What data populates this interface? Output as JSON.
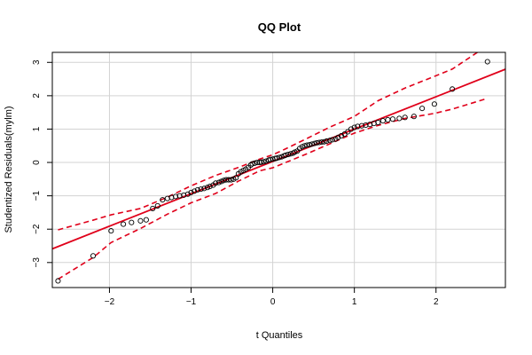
{
  "chart_data": {
    "type": "scatter",
    "title": "QQ Plot",
    "xlabel": "t Quantiles",
    "ylabel": "Studentized Residuals(mylm)",
    "xlim": [
      -2.7,
      2.85
    ],
    "ylim": [
      -3.75,
      3.3
    ],
    "x_ticks": [
      -2,
      -1,
      0,
      1,
      2
    ],
    "y_ticks": [
      -3,
      -2,
      -1,
      0,
      1,
      2,
      3
    ],
    "x_tick_labels": [
      "−2",
      "−1",
      "0",
      "1",
      "2"
    ],
    "y_tick_labels": [
      "−3",
      "−2",
      "−1",
      "0",
      "1",
      "2",
      "3"
    ],
    "grid": true,
    "points": {
      "x": [
        -2.63,
        -2.2,
        -1.98,
        -1.83,
        -1.73,
        -1.62,
        -1.55,
        -1.47,
        -1.41,
        -1.35,
        -1.29,
        -1.24,
        -1.19,
        -1.14,
        -1.09,
        -1.04,
        -1.0,
        -0.96,
        -0.92,
        -0.88,
        -0.84,
        -0.8,
        -0.77,
        -0.73,
        -0.7,
        -0.66,
        -0.63,
        -0.6,
        -0.57,
        -0.54,
        -0.51,
        -0.48,
        -0.45,
        -0.42,
        -0.39,
        -0.36,
        -0.33,
        -0.3,
        -0.27,
        -0.25,
        -0.22,
        -0.19,
        -0.16,
        -0.14,
        -0.11,
        -0.08,
        -0.05,
        -0.03,
        0.0,
        0.03,
        0.05,
        0.08,
        0.11,
        0.14,
        0.16,
        0.19,
        0.22,
        0.25,
        0.27,
        0.3,
        0.33,
        0.36,
        0.39,
        0.42,
        0.45,
        0.48,
        0.51,
        0.54,
        0.57,
        0.6,
        0.63,
        0.66,
        0.7,
        0.73,
        0.77,
        0.8,
        0.84,
        0.88,
        0.92,
        0.96,
        1.0,
        1.04,
        1.09,
        1.14,
        1.19,
        1.24,
        1.29,
        1.35,
        1.41,
        1.47,
        1.55,
        1.62,
        1.73,
        1.83,
        1.98,
        2.2,
        2.63
      ],
      "y": [
        -3.55,
        -2.8,
        -2.05,
        -1.85,
        -1.8,
        -1.75,
        -1.72,
        -1.38,
        -1.3,
        -1.12,
        -1.08,
        -1.05,
        -1.02,
        -1.0,
        -0.98,
        -0.95,
        -0.9,
        -0.86,
        -0.82,
        -0.8,
        -0.78,
        -0.75,
        -0.72,
        -0.68,
        -0.62,
        -0.6,
        -0.57,
        -0.54,
        -0.52,
        -0.52,
        -0.52,
        -0.5,
        -0.46,
        -0.34,
        -0.28,
        -0.24,
        -0.2,
        -0.15,
        -0.08,
        -0.04,
        -0.02,
        0.0,
        0.0,
        0.01,
        0.02,
        0.04,
        0.07,
        0.09,
        0.1,
        0.12,
        0.13,
        0.15,
        0.17,
        0.2,
        0.22,
        0.24,
        0.26,
        0.28,
        0.31,
        0.34,
        0.42,
        0.47,
        0.5,
        0.52,
        0.53,
        0.55,
        0.57,
        0.59,
        0.6,
        0.61,
        0.62,
        0.64,
        0.66,
        0.68,
        0.7,
        0.75,
        0.8,
        0.85,
        0.92,
        1.0,
        1.05,
        1.08,
        1.1,
        1.12,
        1.14,
        1.17,
        1.2,
        1.25,
        1.28,
        1.3,
        1.32,
        1.35,
        1.38,
        1.62,
        1.75,
        2.2,
        3.02
      ]
    },
    "reference_line": {
      "intercept": 0.03,
      "slope": 0.97,
      "color": "#e0001a"
    },
    "envelope": {
      "x": [
        -2.63,
        -2.2,
        -1.98,
        -1.62,
        -1.29,
        -1.0,
        -0.7,
        -0.42,
        -0.16,
        0.0,
        0.16,
        0.42,
        0.7,
        1.0,
        1.29,
        1.62,
        1.98,
        2.2,
        2.63
      ],
      "upper": [
        -2.02,
        -1.73,
        -1.57,
        -1.38,
        -1.04,
        -0.7,
        -0.39,
        -0.15,
        0.1,
        0.23,
        0.41,
        0.72,
        1.06,
        1.38,
        1.85,
        2.23,
        2.58,
        2.8,
        3.5
      ],
      "lower": [
        -3.5,
        -2.85,
        -2.4,
        -1.98,
        -1.55,
        -1.21,
        -0.93,
        -0.56,
        -0.25,
        -0.16,
        0.0,
        0.26,
        0.56,
        0.88,
        1.11,
        1.32,
        1.47,
        1.6,
        1.92
      ],
      "color": "#e0001a"
    },
    "point_color": "#000000",
    "grid_color": "#d3d3d3"
  }
}
